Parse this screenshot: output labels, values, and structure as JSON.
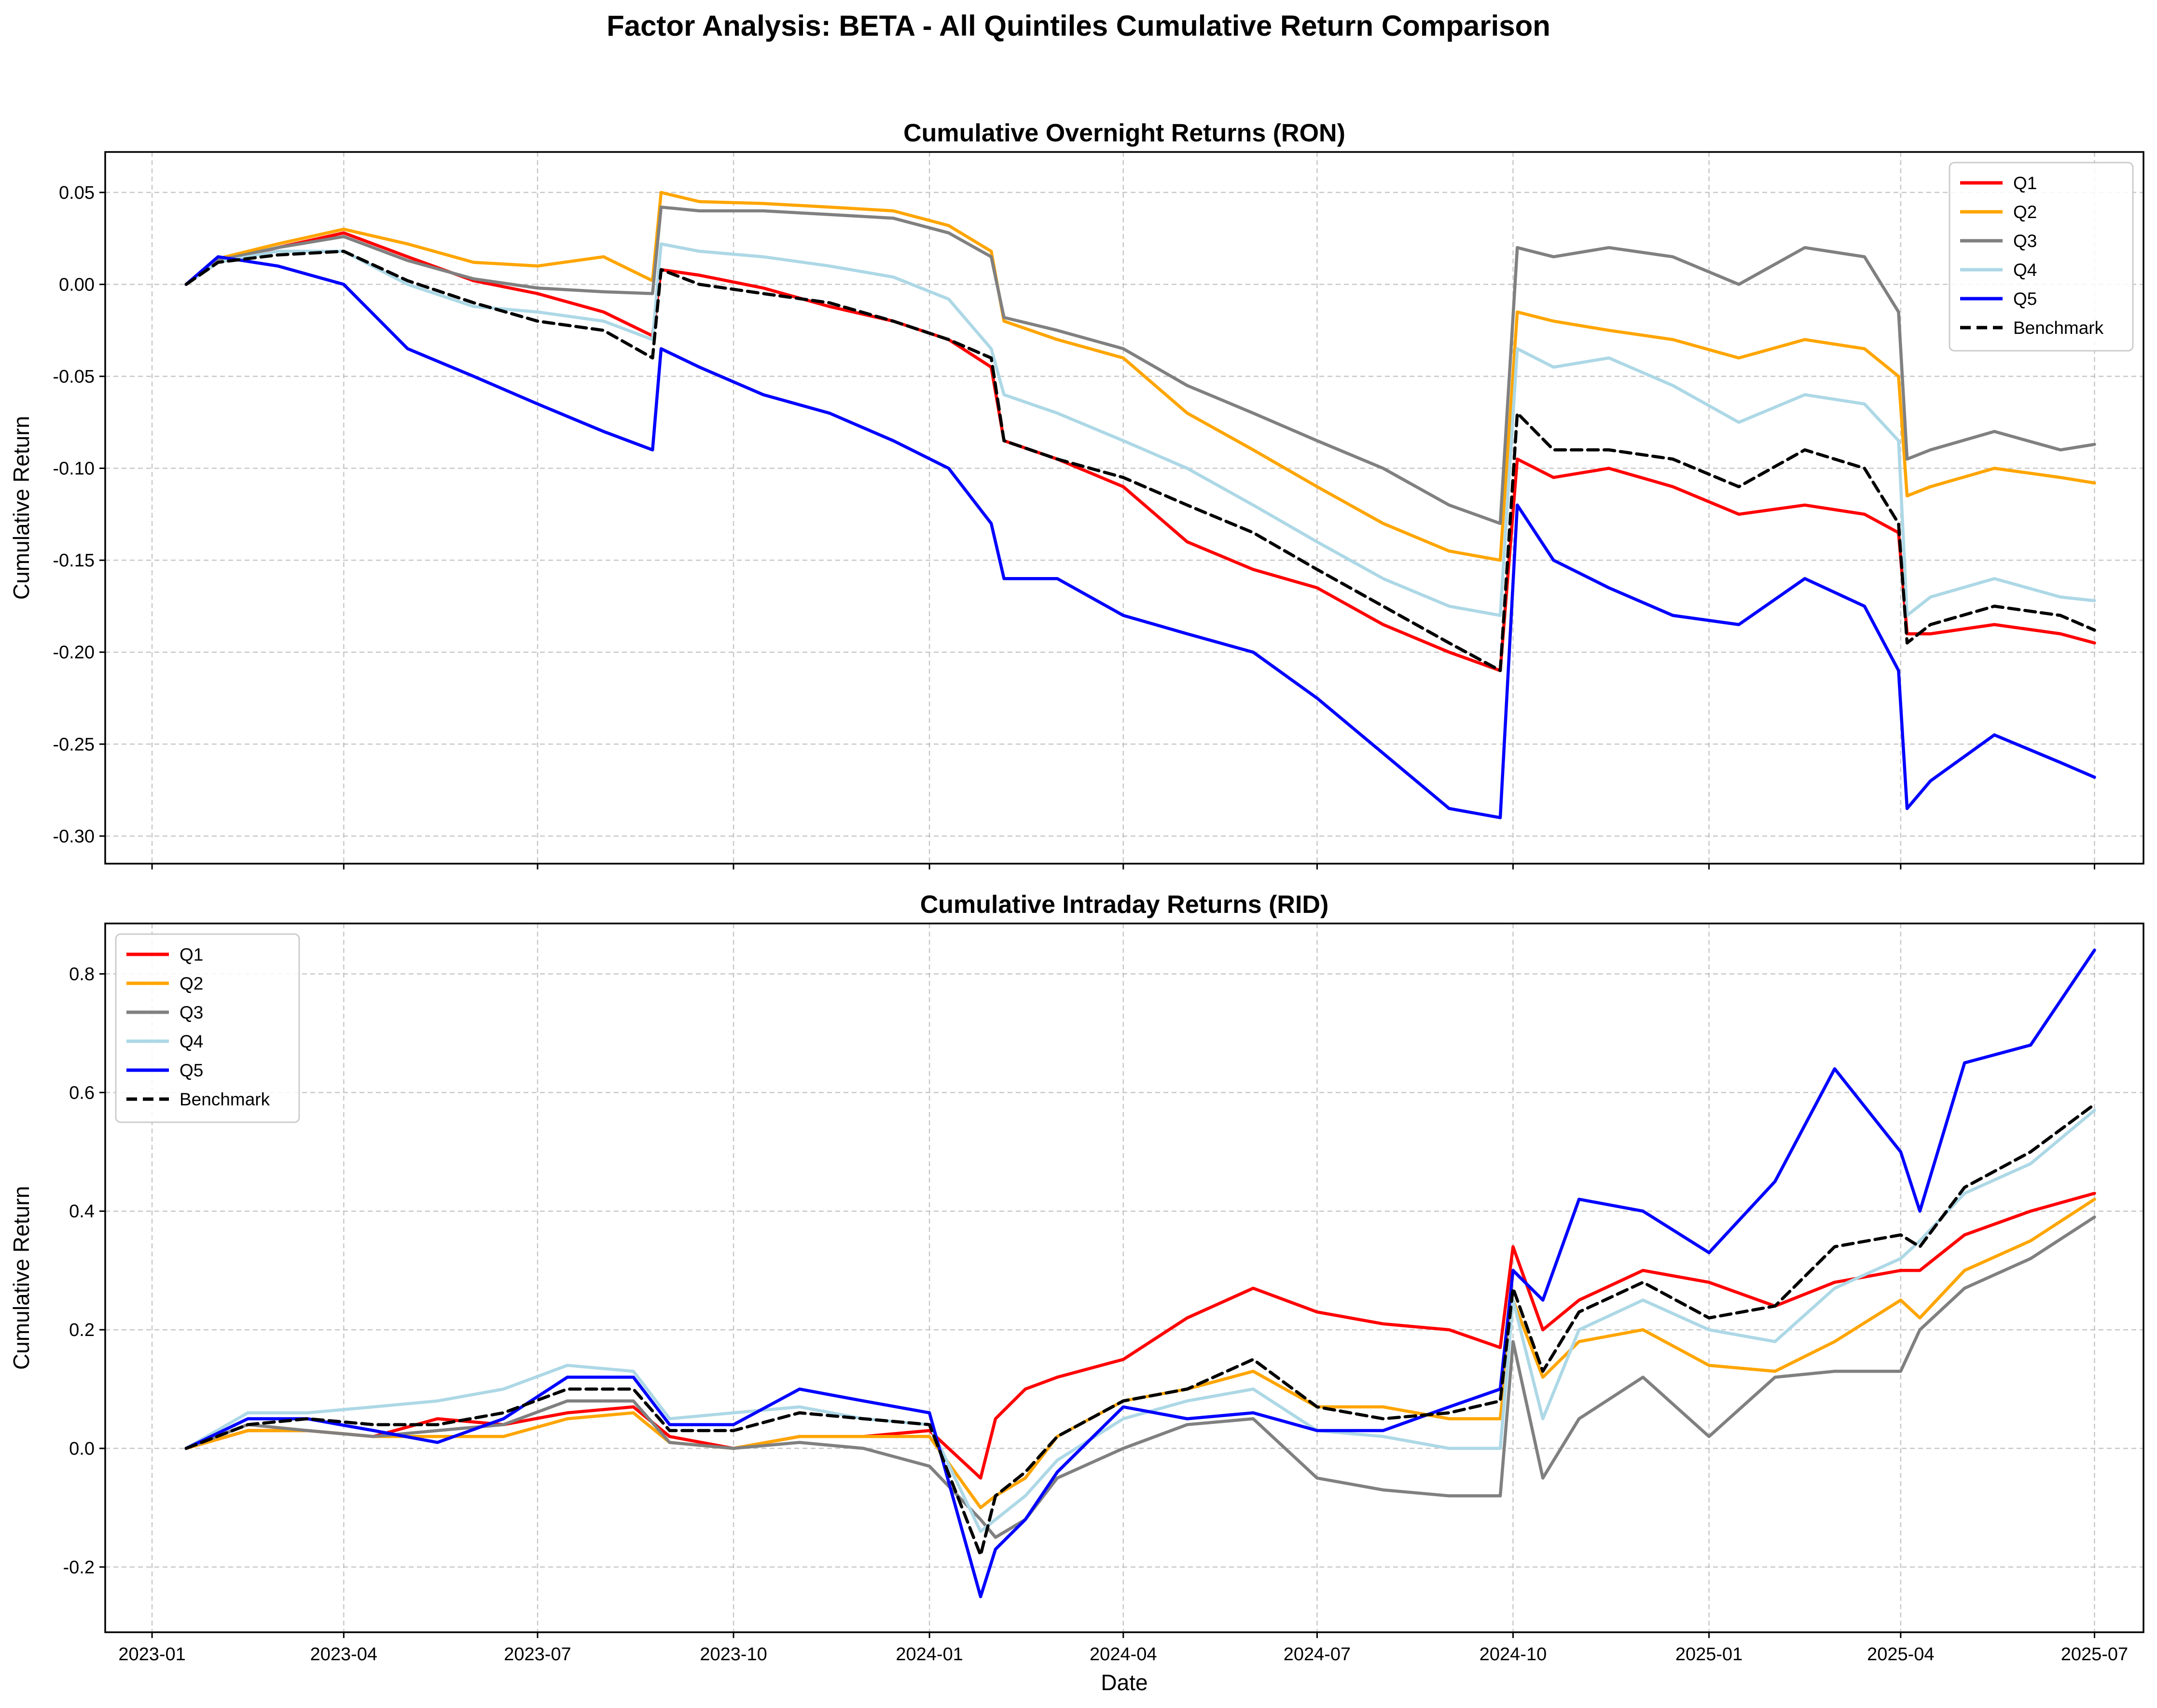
{
  "figure": {
    "title": "Factor Analysis: BETA - All Quintiles Cumulative Return Comparison",
    "x_tick_labels": [
      "2023-01",
      "2023-04",
      "2023-07",
      "2023-10",
      "2024-01",
      "2024-04",
      "2024-07",
      "2024-10",
      "2025-01",
      "2025-04",
      "2025-07"
    ]
  },
  "series_styles": [
    {
      "name": "Q1",
      "color": "#ff0000",
      "dash": "solid"
    },
    {
      "name": "Q2",
      "color": "#ffa500",
      "dash": "solid"
    },
    {
      "name": "Q3",
      "color": "#808080",
      "dash": "solid"
    },
    {
      "name": "Q4",
      "color": "#add8e6",
      "dash": "solid"
    },
    {
      "name": "Q5",
      "color": "#0000ff",
      "dash": "solid"
    },
    {
      "name": "Benchmark",
      "color": "#000000",
      "dash": "dashed"
    }
  ],
  "chart_data": [
    {
      "type": "line",
      "title": "Cumulative Overnight Returns (RON)",
      "xlabel": "",
      "ylabel": "Cumulative Return",
      "x_type": "date",
      "xlim": [
        "2022-12-10",
        "2025-07-24"
      ],
      "ylim": [
        -0.315,
        0.072
      ],
      "yticks": [
        0.05,
        0.0,
        -0.05,
        -0.1,
        -0.15,
        -0.2,
        -0.25,
        -0.3
      ],
      "ytick_labels": [
        "0.05",
        "0.00",
        "-0.05",
        "-0.10",
        "-0.15",
        "-0.20",
        "-0.25",
        "-0.30"
      ],
      "grid": true,
      "legend_position": "top-right",
      "x": [
        "2023-01-17",
        "2023-02-01",
        "2023-03-01",
        "2023-04-01",
        "2023-05-01",
        "2023-06-01",
        "2023-07-01",
        "2023-08-01",
        "2023-08-24",
        "2023-08-28",
        "2023-09-15",
        "2023-10-15",
        "2023-11-15",
        "2023-12-15",
        "2024-01-10",
        "2024-01-30",
        "2024-02-05",
        "2024-03-01",
        "2024-04-01",
        "2024-05-01",
        "2024-06-01",
        "2024-07-01",
        "2024-08-01",
        "2024-09-01",
        "2024-09-25",
        "2024-10-03",
        "2024-10-20",
        "2024-11-15",
        "2024-12-15",
        "2025-01-15",
        "2025-02-15",
        "2025-03-15",
        "2025-03-31",
        "2025-04-04",
        "2025-04-15",
        "2025-05-15",
        "2025-06-15",
        "2025-07-01"
      ],
      "series": [
        {
          "name": "Q1",
          "values": [
            0.0,
            0.012,
            0.02,
            0.028,
            0.015,
            0.002,
            -0.005,
            -0.015,
            -0.028,
            0.008,
            0.005,
            -0.002,
            -0.012,
            -0.02,
            -0.03,
            -0.045,
            -0.085,
            -0.095,
            -0.11,
            -0.14,
            -0.155,
            -0.165,
            -0.185,
            -0.2,
            -0.21,
            -0.095,
            -0.105,
            -0.1,
            -0.11,
            -0.125,
            -0.12,
            -0.125,
            -0.135,
            -0.19,
            -0.19,
            -0.185,
            -0.19,
            -0.195
          ]
        },
        {
          "name": "Q2",
          "values": [
            0.0,
            0.014,
            0.022,
            0.03,
            0.022,
            0.012,
            0.01,
            0.015,
            0.002,
            0.05,
            0.045,
            0.044,
            0.042,
            0.04,
            0.032,
            0.018,
            -0.02,
            -0.03,
            -0.04,
            -0.07,
            -0.09,
            -0.11,
            -0.13,
            -0.145,
            -0.15,
            -0.015,
            -0.02,
            -0.025,
            -0.03,
            -0.04,
            -0.03,
            -0.035,
            -0.05,
            -0.115,
            -0.11,
            -0.1,
            -0.105,
            -0.108
          ]
        },
        {
          "name": "Q3",
          "values": [
            0.0,
            0.013,
            0.02,
            0.026,
            0.013,
            0.003,
            -0.002,
            -0.004,
            -0.005,
            0.042,
            0.04,
            0.04,
            0.038,
            0.036,
            0.028,
            0.015,
            -0.018,
            -0.025,
            -0.035,
            -0.055,
            -0.07,
            -0.085,
            -0.1,
            -0.12,
            -0.13,
            0.02,
            0.015,
            0.02,
            0.015,
            0.0,
            0.02,
            0.015,
            -0.015,
            -0.095,
            -0.09,
            -0.08,
            -0.09,
            -0.087
          ]
        },
        {
          "name": "Q4",
          "values": [
            0.0,
            0.012,
            0.018,
            0.018,
            0.0,
            -0.012,
            -0.015,
            -0.02,
            -0.03,
            0.022,
            0.018,
            0.015,
            0.01,
            0.004,
            -0.008,
            -0.035,
            -0.06,
            -0.07,
            -0.085,
            -0.1,
            -0.12,
            -0.14,
            -0.16,
            -0.175,
            -0.18,
            -0.035,
            -0.045,
            -0.04,
            -0.055,
            -0.075,
            -0.06,
            -0.065,
            -0.085,
            -0.18,
            -0.17,
            -0.16,
            -0.17,
            -0.172
          ]
        },
        {
          "name": "Q5",
          "values": [
            0.0,
            0.015,
            0.01,
            0.0,
            -0.035,
            -0.05,
            -0.065,
            -0.08,
            -0.09,
            -0.035,
            -0.045,
            -0.06,
            -0.07,
            -0.085,
            -0.1,
            -0.13,
            -0.16,
            -0.16,
            -0.18,
            -0.19,
            -0.2,
            -0.225,
            -0.255,
            -0.285,
            -0.29,
            -0.12,
            -0.15,
            -0.165,
            -0.18,
            -0.185,
            -0.16,
            -0.175,
            -0.21,
            -0.285,
            -0.27,
            -0.245,
            -0.26,
            -0.268
          ]
        },
        {
          "name": "Benchmark",
          "values": [
            0.0,
            0.012,
            0.016,
            0.018,
            0.002,
            -0.01,
            -0.02,
            -0.025,
            -0.04,
            0.008,
            0.0,
            -0.005,
            -0.01,
            -0.02,
            -0.03,
            -0.04,
            -0.085,
            -0.095,
            -0.105,
            -0.12,
            -0.135,
            -0.155,
            -0.175,
            -0.195,
            -0.21,
            -0.07,
            -0.09,
            -0.09,
            -0.095,
            -0.11,
            -0.09,
            -0.1,
            -0.13,
            -0.195,
            -0.185,
            -0.175,
            -0.18,
            -0.188
          ]
        }
      ]
    },
    {
      "type": "line",
      "title": "Cumulative Intraday Returns (RID)",
      "xlabel": "Date",
      "ylabel": "Cumulative Return",
      "x_type": "date",
      "xlim": [
        "2022-12-10",
        "2025-07-24"
      ],
      "ylim": [
        -0.31,
        0.885
      ],
      "yticks": [
        0.8,
        0.6,
        0.4,
        0.2,
        0.0,
        -0.2
      ],
      "ytick_labels": [
        "0.8",
        "0.6",
        "0.4",
        "0.2",
        "0.0",
        "-0.2"
      ],
      "grid": true,
      "legend_position": "top-left",
      "x": [
        "2023-01-17",
        "2023-02-15",
        "2023-03-15",
        "2023-04-15",
        "2023-05-15",
        "2023-06-15",
        "2023-07-15",
        "2023-08-15",
        "2023-09-01",
        "2023-10-01",
        "2023-11-01",
        "2023-12-01",
        "2024-01-01",
        "2024-01-25",
        "2024-02-01",
        "2024-02-15",
        "2024-03-01",
        "2024-04-01",
        "2024-05-01",
        "2024-06-01",
        "2024-07-01",
        "2024-08-01",
        "2024-09-01",
        "2024-09-25",
        "2024-10-01",
        "2024-10-15",
        "2024-11-01",
        "2024-12-01",
        "2025-01-01",
        "2025-02-01",
        "2025-03-01",
        "2025-04-01",
        "2025-04-10",
        "2025-05-01",
        "2025-06-01",
        "2025-07-01"
      ],
      "series": [
        {
          "name": "Q1",
          "values": [
            0.0,
            0.03,
            0.03,
            0.02,
            0.05,
            0.04,
            0.06,
            0.07,
            0.02,
            0.0,
            0.02,
            0.02,
            0.03,
            -0.05,
            0.05,
            0.1,
            0.12,
            0.15,
            0.22,
            0.27,
            0.23,
            0.21,
            0.2,
            0.17,
            0.34,
            0.2,
            0.25,
            0.3,
            0.28,
            0.24,
            0.28,
            0.3,
            0.3,
            0.36,
            0.4,
            0.43
          ]
        },
        {
          "name": "Q2",
          "values": [
            0.0,
            0.03,
            0.03,
            0.02,
            0.02,
            0.02,
            0.05,
            0.06,
            0.01,
            0.0,
            0.02,
            0.02,
            0.02,
            -0.1,
            -0.08,
            -0.05,
            0.02,
            0.08,
            0.1,
            0.13,
            0.07,
            0.07,
            0.05,
            0.05,
            0.25,
            0.12,
            0.18,
            0.2,
            0.14,
            0.13,
            0.18,
            0.25,
            0.22,
            0.3,
            0.35,
            0.42
          ]
        },
        {
          "name": "Q3",
          "values": [
            0.0,
            0.04,
            0.03,
            0.02,
            0.03,
            0.04,
            0.08,
            0.08,
            0.01,
            0.0,
            0.01,
            0.0,
            -0.03,
            -0.12,
            -0.15,
            -0.12,
            -0.05,
            0.0,
            0.04,
            0.05,
            -0.05,
            -0.07,
            -0.08,
            -0.08,
            0.18,
            -0.05,
            0.05,
            0.12,
            0.02,
            0.12,
            0.13,
            0.13,
            0.2,
            0.27,
            0.32,
            0.39
          ]
        },
        {
          "name": "Q4",
          "values": [
            0.0,
            0.06,
            0.06,
            0.07,
            0.08,
            0.1,
            0.14,
            0.13,
            0.05,
            0.06,
            0.07,
            0.05,
            0.04,
            -0.14,
            -0.12,
            -0.08,
            -0.02,
            0.05,
            0.08,
            0.1,
            0.03,
            0.02,
            0.0,
            0.0,
            0.25,
            0.05,
            0.2,
            0.25,
            0.2,
            0.18,
            0.27,
            0.32,
            0.35,
            0.43,
            0.48,
            0.57
          ]
        },
        {
          "name": "Q5",
          "values": [
            0.0,
            0.05,
            0.05,
            0.03,
            0.01,
            0.05,
            0.12,
            0.12,
            0.04,
            0.04,
            0.1,
            0.08,
            0.06,
            -0.25,
            -0.17,
            -0.12,
            -0.04,
            0.07,
            0.05,
            0.06,
            0.03,
            0.03,
            0.07,
            0.1,
            0.3,
            0.25,
            0.42,
            0.4,
            0.33,
            0.45,
            0.64,
            0.5,
            0.4,
            0.65,
            0.68,
            0.84
          ]
        },
        {
          "name": "Benchmark",
          "values": [
            0.0,
            0.04,
            0.05,
            0.04,
            0.04,
            0.06,
            0.1,
            0.1,
            0.03,
            0.03,
            0.06,
            0.05,
            0.04,
            -0.18,
            -0.08,
            -0.04,
            0.02,
            0.08,
            0.1,
            0.15,
            0.07,
            0.05,
            0.06,
            0.08,
            0.27,
            0.13,
            0.23,
            0.28,
            0.22,
            0.24,
            0.34,
            0.36,
            0.34,
            0.44,
            0.5,
            0.58
          ]
        }
      ]
    }
  ]
}
